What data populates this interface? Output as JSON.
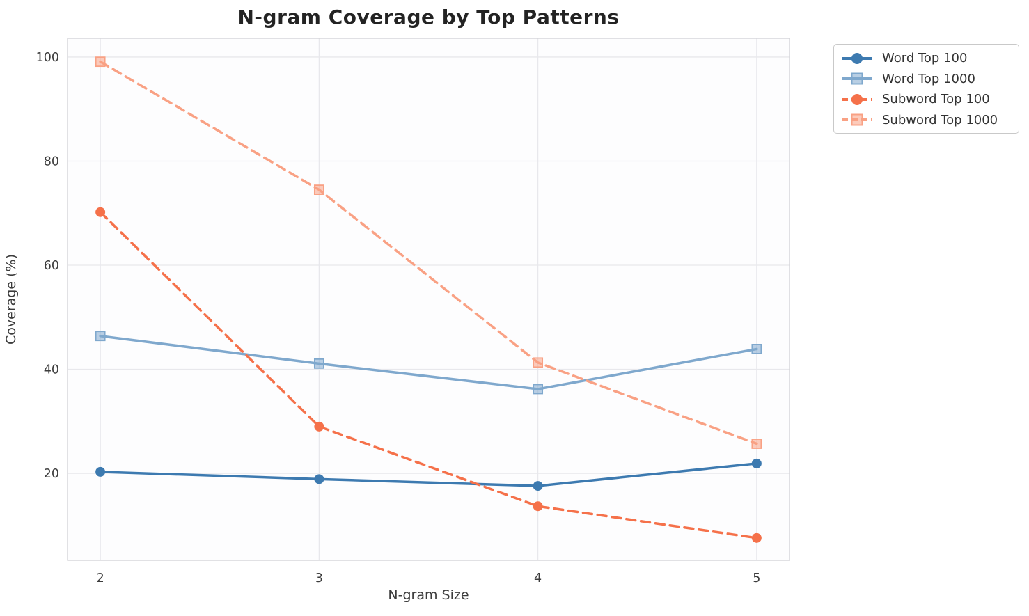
{
  "figure": {
    "title": "N-gram Coverage by Top Patterns"
  },
  "chart_data": {
    "type": "line",
    "title": "N-gram Coverage by Top Patterns",
    "xlabel": "N-gram Size",
    "ylabel": "Coverage (%)",
    "x": [
      2,
      3,
      4,
      5
    ],
    "xticks": [
      "2",
      "3",
      "4",
      "5"
    ],
    "yticks": [
      20,
      40,
      60,
      80,
      100
    ],
    "xlim": [
      1.85,
      5.15
    ],
    "ylim": [
      3.3,
      103.6
    ],
    "grid": true,
    "legend_position": "outside-upper-right",
    "series": [
      {
        "name": "Word Top 100",
        "values": [
          20.3,
          18.9,
          17.6,
          21.9
        ],
        "color": "#3d7ab0",
        "linestyle": "solid",
        "marker": "circle"
      },
      {
        "name": "Word Top 1000",
        "values": [
          46.4,
          41.1,
          36.2,
          43.9
        ],
        "color": "#7fa8cd",
        "linestyle": "solid",
        "marker": "square"
      },
      {
        "name": "Subword Top 100",
        "values": [
          70.2,
          29.0,
          13.7,
          7.6
        ],
        "color": "#f5714a",
        "linestyle": "dashed",
        "marker": "circle"
      },
      {
        "name": "Subword Top 1000",
        "values": [
          99.1,
          74.5,
          41.3,
          25.7
        ],
        "color": "#f9a184",
        "linestyle": "dashed",
        "marker": "square"
      }
    ],
    "style": {
      "plot_bg": "#fdfdfe",
      "grid_color": "#e8e8ec",
      "spine_color": "#d4d4d9",
      "title_color": "#232323",
      "tick_color": "#3c3c3c"
    }
  }
}
